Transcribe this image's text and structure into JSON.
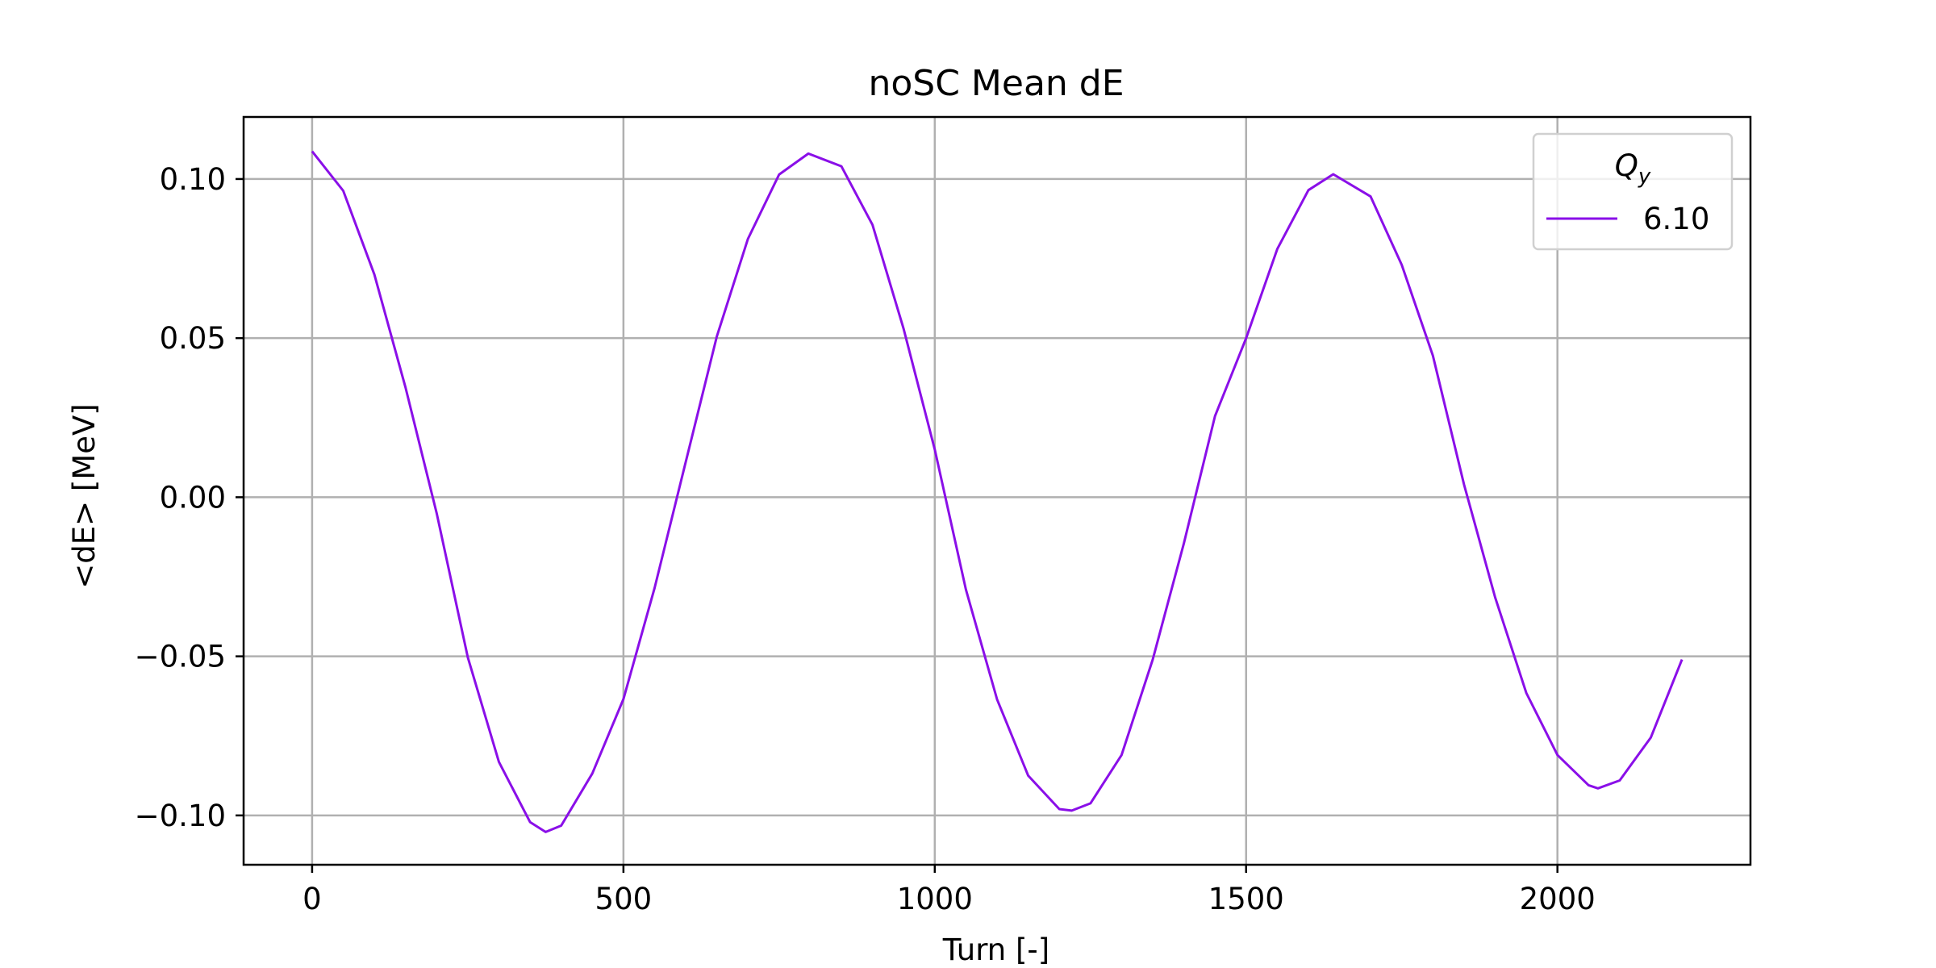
{
  "chart_data": {
    "type": "line",
    "title": "noSC Mean dE",
    "xlabel": "Turn [-]",
    "ylabel": "<dE> [MeV]",
    "xlim": [
      -110,
      2310
    ],
    "ylim": [
      -0.1155,
      0.1195
    ],
    "x_ticks": [
      0,
      500,
      1000,
      1500,
      2000
    ],
    "x_tick_labels": [
      "0",
      "500",
      "1000",
      "1500",
      "2000"
    ],
    "y_ticks": [
      0.1,
      0.05,
      0.0,
      -0.05,
      -0.1
    ],
    "y_tick_labels": [
      "0.10",
      "0.05",
      "0.00",
      "−0.05",
      "−0.10"
    ],
    "grid": true,
    "legend": {
      "title": "Q",
      "title_subscript": "y",
      "placement": "top-right"
    },
    "series": [
      {
        "name": "6.10",
        "color": "#8a0fe8",
        "x": [
          0,
          50,
          100,
          150,
          200,
          250,
          300,
          350,
          375,
          400,
          450,
          500,
          550,
          600,
          650,
          700,
          750,
          797,
          850,
          900,
          950,
          1000,
          1050,
          1100,
          1150,
          1200,
          1220,
          1250,
          1300,
          1350,
          1400,
          1450,
          1500,
          1550,
          1600,
          1640,
          1700,
          1750,
          1800,
          1850,
          1900,
          1950,
          2000,
          2050,
          2065,
          2100,
          2150,
          2200
        ],
        "y": [
          0.1087,
          0.0963,
          0.07,
          0.0345,
          -0.005,
          -0.0503,
          -0.0832,
          -0.1021,
          -0.1052,
          -0.1032,
          -0.0868,
          -0.0634,
          -0.0285,
          0.011,
          0.0505,
          0.0812,
          0.1014,
          0.108,
          0.104,
          0.0856,
          0.0529,
          0.015,
          -0.029,
          -0.0635,
          -0.0875,
          -0.098,
          -0.0985,
          -0.0962,
          -0.081,
          -0.051,
          -0.0145,
          0.0255,
          0.05,
          0.078,
          0.0965,
          0.1015,
          0.0945,
          0.073,
          0.0445,
          0.004,
          -0.0315,
          -0.0615,
          -0.081,
          -0.0905,
          -0.0915,
          -0.089,
          -0.0755,
          -0.051
        ]
      }
    ]
  }
}
